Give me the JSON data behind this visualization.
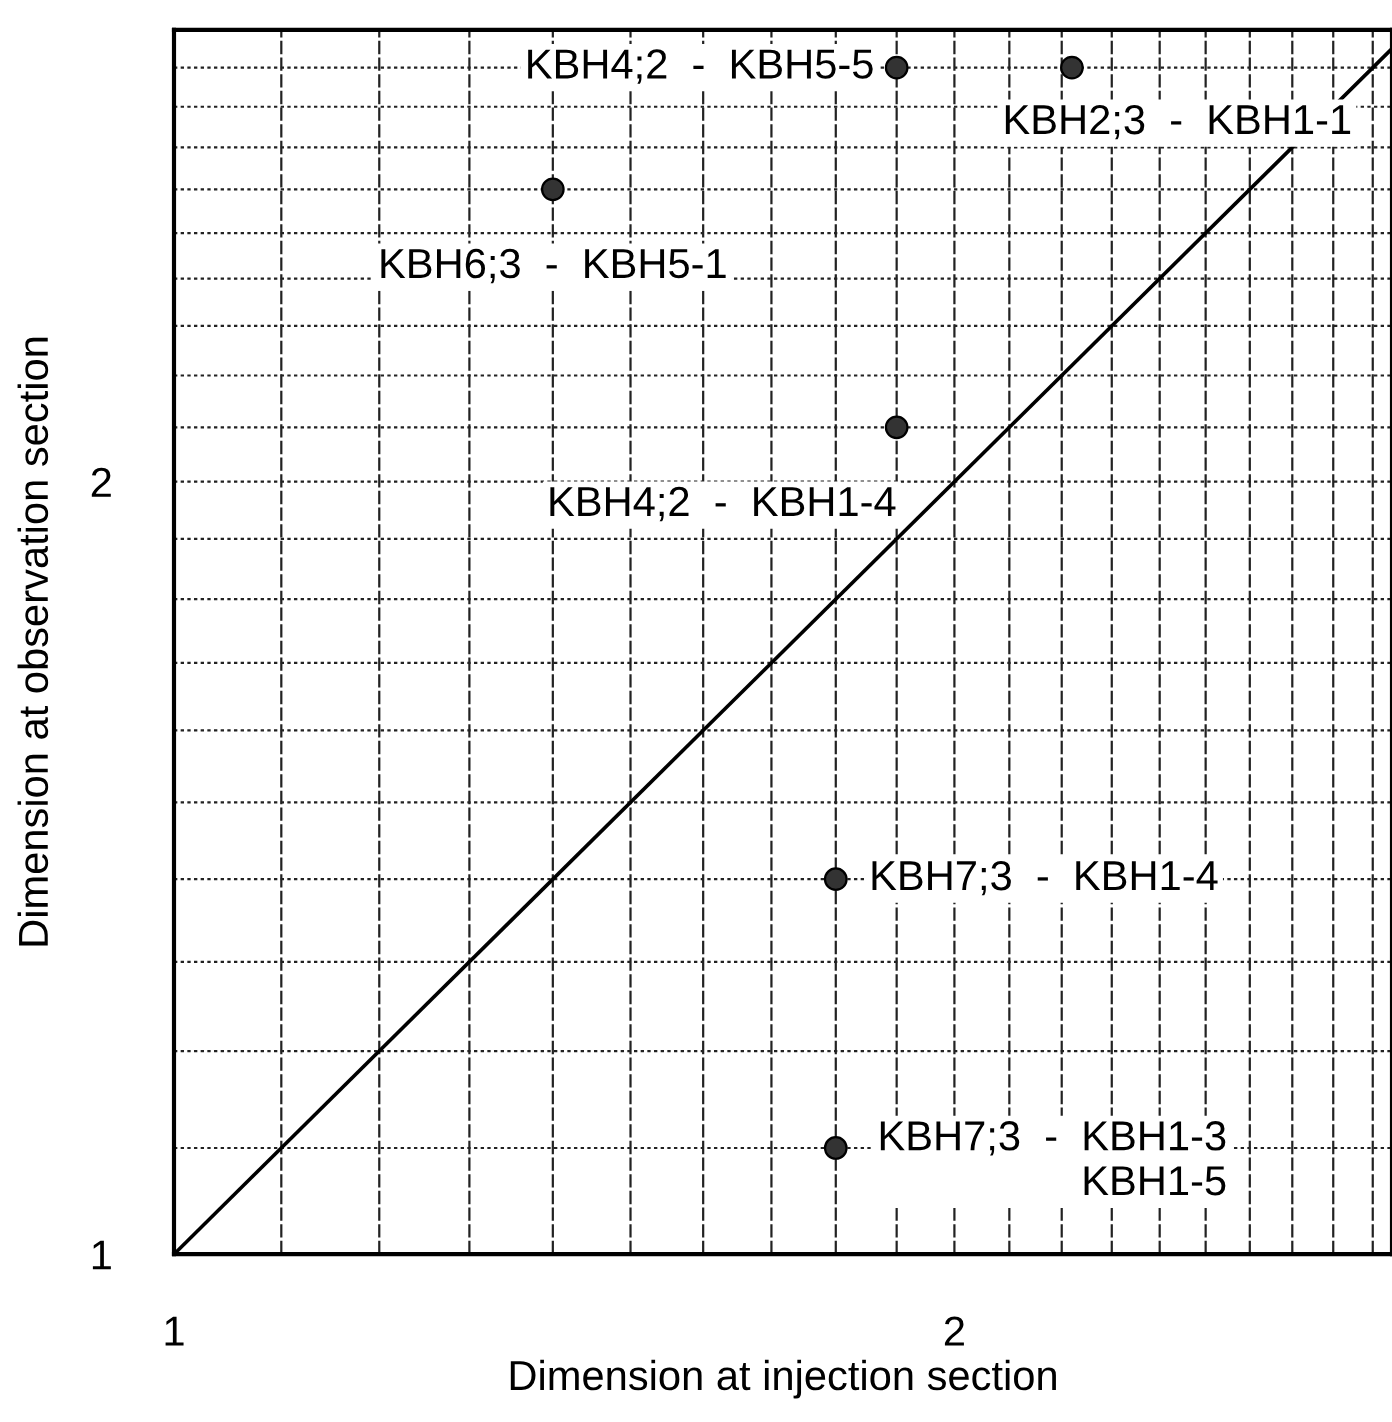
{
  "chart_data": {
    "type": "scatter",
    "xlabel": "Dimension at injection section",
    "ylabel": "Dimension at observation section",
    "log": "xy",
    "grid": true,
    "marker": "circle",
    "xlim": [
      1,
      2.95
    ],
    "ylim": [
      1,
      3
    ],
    "xticks": [
      1,
      {
        "value": 1.1,
        "label": null
      },
      {
        "value": 1.2,
        "label": null
      },
      {
        "value": 1.3,
        "label": null
      },
      {
        "value": 1.4,
        "label": null
      },
      {
        "value": 1.5,
        "label": null
      },
      {
        "value": 1.6,
        "label": null
      },
      {
        "value": 1.7,
        "label": null
      },
      {
        "value": 1.8,
        "label": null
      },
      {
        "value": 1.9,
        "label": null
      },
      2,
      {
        "value": 2.1,
        "label": null
      },
      {
        "value": 2.2,
        "label": null
      },
      {
        "value": 2.3,
        "label": null
      },
      {
        "value": 2.4,
        "label": null
      },
      {
        "value": 2.5,
        "label": null
      },
      {
        "value": 2.6,
        "label": null
      },
      {
        "value": 2.7,
        "label": null
      },
      {
        "value": 2.8,
        "label": null
      },
      {
        "value": 2.9,
        "label": null
      }
    ],
    "yticks": [
      1,
      {
        "value": 1.1,
        "label": null
      },
      {
        "value": 1.2,
        "label": null
      },
      {
        "value": 1.3,
        "label": null
      },
      {
        "value": 1.4,
        "label": null
      },
      {
        "value": 1.5,
        "label": null
      },
      {
        "value": 1.6,
        "label": null
      },
      {
        "value": 1.7,
        "label": null
      },
      {
        "value": 1.8,
        "label": null
      },
      {
        "value": 1.9,
        "label": null
      },
      2,
      {
        "value": 2.1,
        "label": null
      },
      {
        "value": 2.2,
        "label": null
      },
      {
        "value": 2.3,
        "label": null
      },
      {
        "value": 2.4,
        "label": null
      },
      {
        "value": 2.5,
        "label": null
      },
      {
        "value": 2.6,
        "label": null
      },
      {
        "value": 2.7,
        "label": null
      },
      {
        "value": 2.8,
        "label": null
      },
      {
        "value": 2.9,
        "label": null
      }
    ],
    "series": [
      {
        "color": "#333333",
        "x": [
          1.9,
          2.22,
          1.4,
          1.9,
          1.8,
          1.8
        ],
        "values": [
          2.9,
          2.9,
          2.6,
          2.1,
          1.4,
          1.1
        ]
      },
      {
        "type": "line",
        "color": "#000000",
        "marker": "none",
        "x": [
          1,
          2.95
        ],
        "values": [
          1,
          2.95
        ]
      }
    ],
    "annotations": [
      {
        "text": "KBH4;2  -  KBH5-5",
        "x": 1.9,
        "y": 2.9
      },
      {
        "text": "KBH2;3  -  KBH1-1",
        "x": 2.22,
        "y": 2.9
      },
      {
        "text": "KBH6;3  -  KBH5-1",
        "x": 1.4,
        "y": 2.6
      },
      {
        "text": "KBH4;2  -  KBH1-4",
        "x": 1.9,
        "y": 2.1
      },
      {
        "text": "KBH7;3  -  KBH1-4",
        "x": 1.8,
        "y": 1.4
      },
      {
        "text": "KBH7;3  -  KBH1-3\nKBH1-5",
        "x": 1.8,
        "y": 1.1
      }
    ]
  }
}
